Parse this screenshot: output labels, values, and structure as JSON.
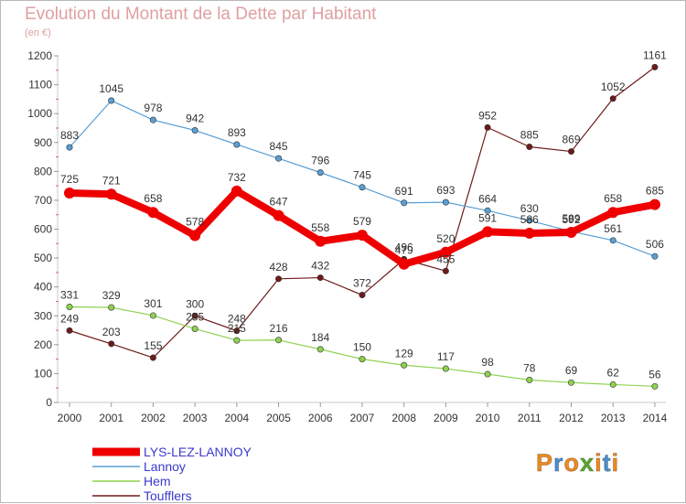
{
  "header": {
    "title": "Evolution du Montant de la Dette par Habitant",
    "subtitle": "(en €)"
  },
  "logo": {
    "text": "Proxiti",
    "letters": [
      "P",
      "r",
      "o",
      "x",
      "i",
      "t",
      "i"
    ],
    "colors": [
      "#f08a1c",
      "#4a90d0",
      "#f08a1c",
      "#5aaa2a",
      "#f08a1c",
      "#4a90d0",
      "#f08a1c"
    ]
  },
  "chart_data": {
    "type": "line",
    "title": "Evolution du Montant de la Dette par Habitant",
    "subtitle": "(en €)",
    "x": [
      "2000",
      "2001",
      "2002",
      "2003",
      "2004",
      "2005",
      "2006",
      "2007",
      "2008",
      "2009",
      "2010",
      "2011",
      "2012",
      "2013",
      "2014"
    ],
    "ylim": [
      0,
      1200
    ],
    "yticks": [
      0,
      100,
      200,
      300,
      400,
      500,
      600,
      700,
      800,
      900,
      1000,
      1100,
      1200
    ],
    "grid": false,
    "legend_position": "bottom-left",
    "series": [
      {
        "name": "Toufflers",
        "color": "#6e1a1a",
        "values": [
          249,
          203,
          155,
          300,
          248,
          428,
          432,
          372,
          496,
          455,
          952,
          885,
          869,
          1052,
          1161
        ]
      },
      {
        "name": "Hem",
        "color": "#8ed24f",
        "values": [
          331,
          329,
          301,
          255,
          215,
          216,
          184,
          150,
          129,
          117,
          98,
          78,
          69,
          62,
          56
        ]
      },
      {
        "name": "Lannoy",
        "color": "#5a9fd4",
        "values": [
          883,
          1045,
          978,
          942,
          893,
          845,
          796,
          745,
          691,
          693,
          664,
          630,
          592,
          561,
          506
        ]
      },
      {
        "name": "LYS-LEZ-LANNOY",
        "color": "#ee0000",
        "values": [
          725,
          721,
          658,
          578,
          732,
          647,
          558,
          579,
          479,
          520,
          591,
          586,
          589,
          658,
          685
        ]
      }
    ]
  }
}
